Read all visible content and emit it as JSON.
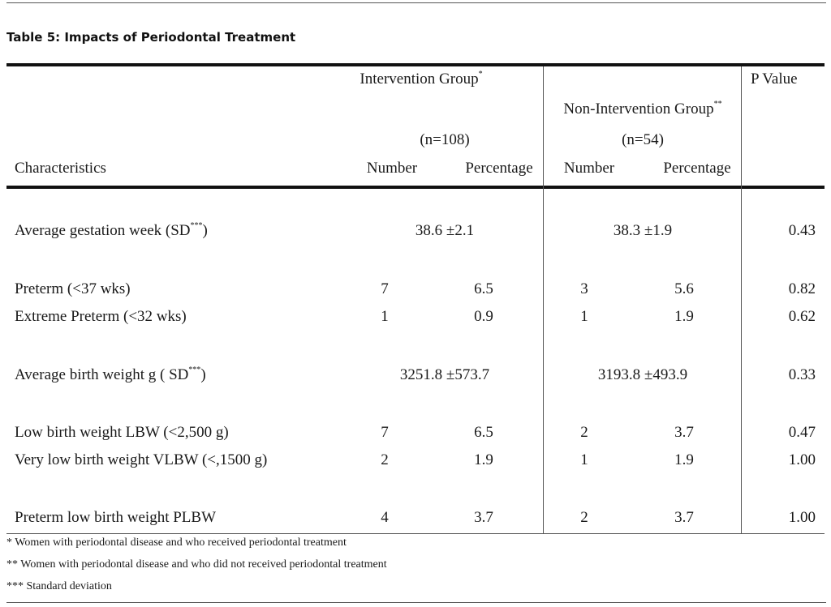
{
  "title": "Table 5: Impacts of Periodontal Treatment",
  "header": {
    "intervention_group": "Intervention Group",
    "intervention_mark": "*",
    "intervention_n": "(n=108)",
    "non_intervention_group": "Non-Intervention Group",
    "non_intervention_mark": "**",
    "non_intervention_n": "(n=54)",
    "p_value": "P Value",
    "characteristics": "Characteristics",
    "number": "Number",
    "percentage": "Percentage"
  },
  "rows": [
    {
      "label": "Average gestation week (SD",
      "label_sup": "***",
      "label_end": ")",
      "int_merged": "38.6 ±2.1",
      "non_merged": "38.3 ±1.9",
      "p": "0.43"
    },
    {
      "label": "Preterm (<37 wks)",
      "int_num": "7",
      "int_pct": "6.5",
      "non_num": "3",
      "non_pct": "5.6",
      "p": "0.82"
    },
    {
      "label": "Extreme Preterm (<32 wks)",
      "int_num": "1",
      "int_pct": "0.9",
      "non_num": "1",
      "non_pct": "1.9",
      "p": "0.62"
    },
    {
      "label": "Average birth weight g ( SD",
      "label_sup": "***",
      "label_end": ")",
      "int_merged": "3251.8 ±573.7",
      "non_merged": "3193.8 ±493.9",
      "p": "0.33"
    },
    {
      "label": "Low birth weight LBW (<2,500 g)",
      "int_num": "7",
      "int_pct": "6.5",
      "non_num": "2",
      "non_pct": "3.7",
      "p": "0.47"
    },
    {
      "label": "Very low birth weight VLBW (<,1500 g)",
      "int_num": "2",
      "int_pct": "1.9",
      "non_num": "1",
      "non_pct": "1.9",
      "p": "1.00"
    },
    {
      "label": "Preterm low birth weight PLBW",
      "int_num": "4",
      "int_pct": "3.7",
      "non_num": "2",
      "non_pct": "3.7",
      "p": "1.00"
    }
  ],
  "footnotes": [
    {
      "mark": "*",
      "text": " Women with periodontal disease and who received periodontal treatment"
    },
    {
      "mark": "**",
      "text": " Women with periodontal disease and who did not received periodontal treatment"
    },
    {
      "mark": "***",
      "text": " Standard deviation"
    }
  ]
}
